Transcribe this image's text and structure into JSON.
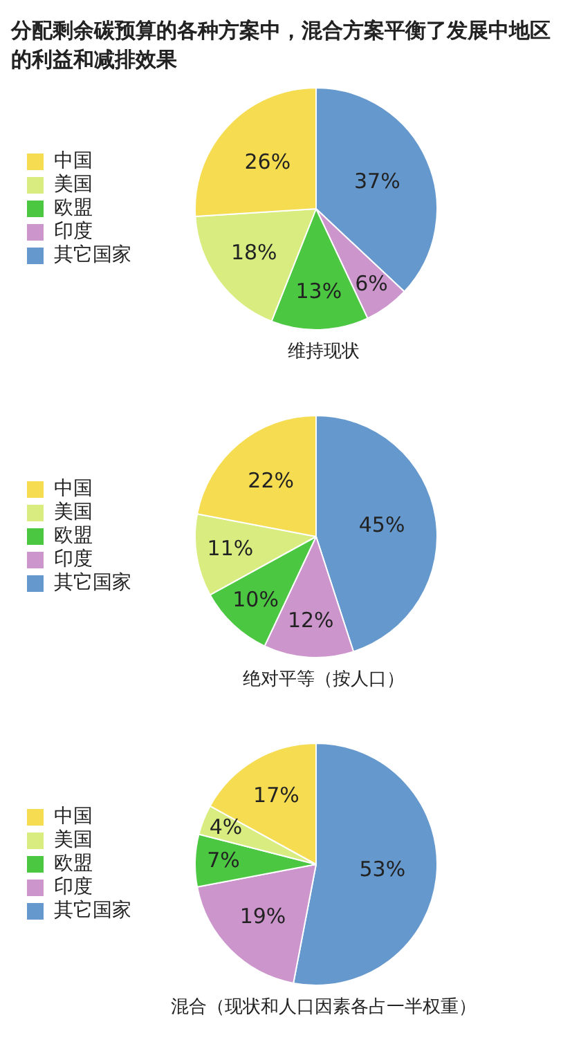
{
  "chart_data": [
    {
      "type": "pie",
      "title": "分配剩余碳预算的各种方案中，混合方案平衡了发展中地区的利益和减排效果",
      "xlabel": "维持现状",
      "categories": [
        "中国",
        "美国",
        "欧盟",
        "印度",
        "其它国家"
      ],
      "values": [
        26,
        18,
        13,
        6,
        37
      ],
      "colors": [
        "#f5dc50",
        "#d9ec80",
        "#4cc742",
        "#cc95cc",
        "#6598cc"
      ],
      "value_labels": [
        "26%",
        "18%",
        "13%",
        "6%",
        "37%"
      ],
      "legend": "left"
    },
    {
      "type": "pie",
      "xlabel": "绝对平等（按人口）",
      "categories": [
        "中国",
        "美国",
        "欧盟",
        "印度",
        "其它国家"
      ],
      "values": [
        22,
        11,
        10,
        12,
        45
      ],
      "colors": [
        "#f5dc50",
        "#d9ec80",
        "#4cc742",
        "#cc95cc",
        "#6598cc"
      ],
      "value_labels": [
        "22%",
        "11%",
        "10%",
        "12%",
        "45%"
      ],
      "legend": "left"
    },
    {
      "type": "pie",
      "xlabel": "混合（现状和人口因素各占一半权重）",
      "categories": [
        "中国",
        "美国",
        "欧盟",
        "印度",
        "其它国家"
      ],
      "values": [
        17,
        4,
        7,
        19,
        53
      ],
      "colors": [
        "#f5dc50",
        "#d9ec80",
        "#4cc742",
        "#cc95cc",
        "#6598cc"
      ],
      "value_labels": [
        "17%",
        "4%",
        "7%",
        "19%",
        "53%"
      ],
      "legend": "left"
    }
  ]
}
